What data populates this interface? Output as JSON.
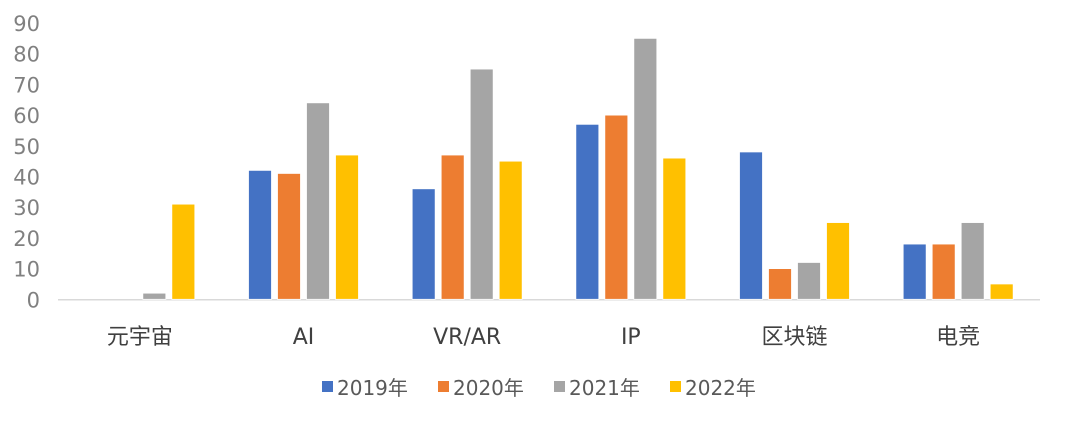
{
  "chart_data": {
    "type": "bar",
    "title": "",
    "xlabel": "",
    "ylabel": "",
    "ylim": [
      0,
      90
    ],
    "yticks": [
      0,
      10,
      20,
      30,
      40,
      50,
      60,
      70,
      80,
      90
    ],
    "grid": false,
    "legend_position": "bottom",
    "categories": [
      "元宇宙",
      "AI",
      "VR/AR",
      "IP",
      "区块链",
      "电竞"
    ],
    "series": [
      {
        "name": "2019年",
        "color": "#4472C4",
        "values": [
          0,
          42,
          36,
          57,
          48,
          18
        ]
      },
      {
        "name": "2020年",
        "color": "#ED7D31",
        "values": [
          0,
          41,
          47,
          60,
          10,
          18
        ]
      },
      {
        "name": "2021年",
        "color": "#A5A5A5",
        "values": [
          2,
          64,
          75,
          85,
          12,
          25
        ]
      },
      {
        "name": "2022年",
        "color": "#FFC000",
        "values": [
          31,
          47,
          45,
          46,
          25,
          5
        ]
      }
    ]
  }
}
